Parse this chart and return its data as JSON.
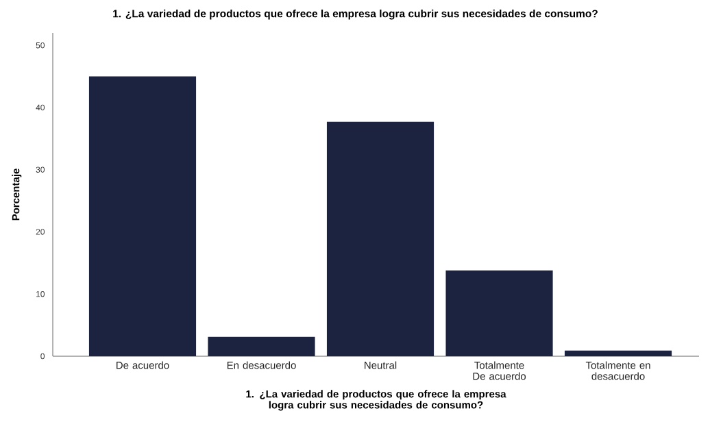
{
  "chart_data": {
    "type": "bar",
    "title": "1. ¿La variedad de productos que ofrece la empresa logra cubrir sus necesidades de consumo?",
    "xlabel": "1. ¿La variedad de productos que ofrece la empresa logra cubrir sus necesidades de consumo?",
    "ylabel": "Porcentaje",
    "categories": [
      "De acuerdo",
      "En desacuerdo",
      "Neutral",
      "Totalmente De acuerdo",
      "Totalmente en desacuerdo"
    ],
    "values": [
      45,
      3.1,
      37.7,
      13.8,
      0.9
    ],
    "color": "#1c2340",
    "ylim": [
      0,
      52
    ],
    "yticks": [
      0,
      10,
      20,
      30,
      40,
      50
    ],
    "grid": false
  }
}
